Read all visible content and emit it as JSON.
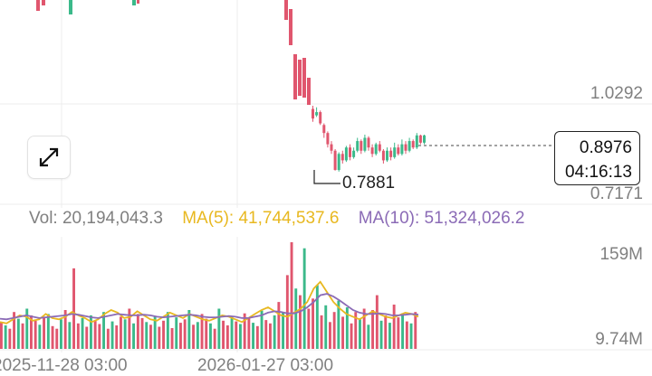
{
  "price_axis": {
    "high_label": "1.0292",
    "low_label": "0.7171"
  },
  "current_price": {
    "value": "0.8976",
    "countdown": "04:16:13"
  },
  "low_marker": {
    "value": "0.7881"
  },
  "volume_legend": {
    "vol": "Vol: 20,194,043.3",
    "ma5": "MA(5): 41,744,537.6",
    "ma10": "MA(10): 51,324,026.2"
  },
  "volume_axis": {
    "high_label": "159M",
    "low_label": "9.74M"
  },
  "time_axis": {
    "left_label": "2025-11-28 03:00",
    "right_label": "2026-01-27 03:00"
  },
  "expand_button": {
    "icon": "expand-arrows-icon"
  },
  "colors": {
    "up": "#3bb98a",
    "down": "#e0566e",
    "ma5": "#e8b820",
    "ma10": "#8b6bb6",
    "grid": "#ececec"
  },
  "chart_data": {
    "type": "candlestick-with-volume",
    "price_range": [
      0.7171,
      1.0292
    ],
    "volume_range": [
      9.74,
      159
    ],
    "volume_unit": "M",
    "current_price": 0.8976,
    "lowest_marked": 0.7881,
    "candles": [
      [
        0.98,
        0.95,
        0.99,
        0.94
      ],
      [
        0.96,
        0.97,
        0.985,
        0.955
      ],
      [
        0.97,
        0.935,
        0.975,
        0.93
      ],
      [
        0.93,
        0.905,
        0.935,
        0.89
      ],
      [
        0.905,
        0.87,
        0.91,
        0.86
      ],
      [
        0.87,
        0.85,
        0.88,
        0.84
      ],
      [
        0.85,
        0.79,
        0.855,
        0.7881
      ],
      [
        0.79,
        0.84,
        0.845,
        0.785
      ],
      [
        0.84,
        0.82,
        0.85,
        0.81
      ],
      [
        0.82,
        0.86,
        0.865,
        0.815
      ],
      [
        0.86,
        0.83,
        0.87,
        0.82
      ],
      [
        0.83,
        0.85,
        0.86,
        0.825
      ],
      [
        0.85,
        0.88,
        0.89,
        0.845
      ],
      [
        0.88,
        0.85,
        0.885,
        0.84
      ],
      [
        0.85,
        0.89,
        0.9,
        0.845
      ],
      [
        0.89,
        0.86,
        0.895,
        0.85
      ],
      [
        0.86,
        0.84,
        0.87,
        0.83
      ],
      [
        0.84,
        0.87,
        0.875,
        0.835
      ],
      [
        0.87,
        0.85,
        0.88,
        0.845
      ],
      [
        0.85,
        0.82,
        0.855,
        0.81
      ],
      [
        0.82,
        0.85,
        0.86,
        0.815
      ],
      [
        0.85,
        0.83,
        0.86,
        0.82
      ],
      [
        0.83,
        0.86,
        0.875,
        0.825
      ],
      [
        0.86,
        0.84,
        0.87,
        0.835
      ],
      [
        0.84,
        0.87,
        0.885,
        0.835
      ],
      [
        0.87,
        0.85,
        0.88,
        0.84
      ],
      [
        0.85,
        0.88,
        0.89,
        0.845
      ],
      [
        0.88,
        0.86,
        0.885,
        0.855
      ],
      [
        0.86,
        0.8976,
        0.905,
        0.855
      ],
      [
        0.8976,
        0.875,
        0.9,
        0.87
      ],
      [
        0.875,
        0.8976,
        0.9,
        0.87
      ]
    ],
    "volumes_left": [
      40,
      35,
      30,
      55,
      45,
      38,
      60,
      50,
      42,
      36,
      48,
      52,
      34,
      30,
      44,
      58,
      40,
      120,
      38,
      46,
      33,
      50,
      42,
      37,
      55,
      30,
      41,
      35,
      48,
      44,
      60,
      38,
      52,
      46,
      40,
      36,
      49,
      33,
      42,
      55,
      31,
      47,
      39,
      44,
      58,
      36,
      40,
      52,
      45,
      38,
      30,
      60,
      42,
      35,
      48,
      41,
      37,
      53,
      46,
      39,
      34,
      57,
      43,
      38,
      50
    ],
    "volumes_right": [
      70,
      55,
      110,
      159,
      90,
      80,
      150,
      60,
      75,
      95,
      50,
      65,
      40,
      55,
      72,
      48,
      62,
      38,
      55,
      44,
      60,
      36,
      58,
      80,
      42,
      50,
      39,
      66,
      47,
      53,
      41,
      38,
      55
    ],
    "ma5": [
      40,
      38,
      44,
      50,
      48,
      42,
      44,
      52,
      46,
      44,
      48,
      55,
      50,
      46,
      40,
      44,
      52,
      58,
      54,
      46,
      48,
      56,
      50,
      44,
      42,
      48,
      54,
      50,
      46,
      52,
      48,
      44,
      42,
      46,
      50,
      48,
      44,
      40,
      46,
      52,
      58,
      62,
      56,
      50,
      48,
      54,
      60,
      70,
      90,
      100,
      85,
      70,
      60,
      52,
      48,
      44,
      50,
      56,
      52,
      48,
      46,
      50,
      54,
      52,
      48
    ],
    "ma10": [
      45,
      44,
      46,
      48,
      50,
      48,
      46,
      47,
      48,
      49,
      50,
      52,
      51,
      49,
      47,
      46,
      48,
      50,
      52,
      51,
      50,
      50,
      51,
      50,
      48,
      47,
      48,
      49,
      50,
      51,
      50,
      48,
      47,
      47,
      48,
      49,
      48,
      46,
      46,
      48,
      50,
      54,
      56,
      55,
      53,
      53,
      56,
      62,
      70,
      80,
      82,
      78,
      72,
      65,
      58,
      54,
      52,
      52,
      53,
      52,
      50,
      50,
      51,
      52,
      51
    ]
  }
}
